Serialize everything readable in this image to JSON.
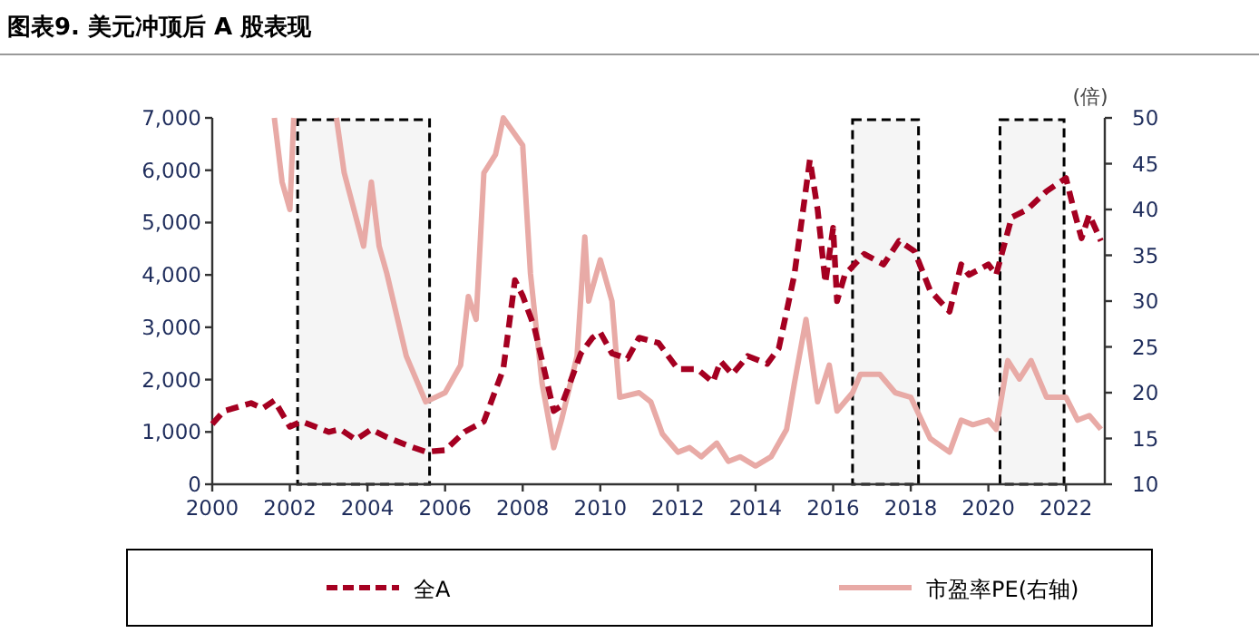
{
  "chart_data": {
    "type": "line",
    "title": "图表9. 美元冲顶后 A 股表现",
    "y2label": "(倍)",
    "xlim": [
      2000,
      2023
    ],
    "xticks": [
      2000,
      2002,
      2004,
      2006,
      2008,
      2010,
      2012,
      2014,
      2016,
      2018,
      2020,
      2022
    ],
    "ylim": [
      0,
      7000
    ],
    "yticks": [
      {
        "value": 0,
        "label": "0"
      },
      {
        "value": 1000,
        "label": "1,000"
      },
      {
        "value": 2000,
        "label": "2,000"
      },
      {
        "value": 3000,
        "label": "3,000"
      },
      {
        "value": 4000,
        "label": "4,000"
      },
      {
        "value": 5000,
        "label": "5,000"
      },
      {
        "value": 6000,
        "label": "6,000"
      },
      {
        "value": 7000,
        "label": "7,000"
      }
    ],
    "y2lim": [
      10,
      50
    ],
    "y2ticks": [
      10,
      15,
      20,
      25,
      30,
      35,
      40,
      45,
      50
    ],
    "legend": "bottom",
    "grid": false,
    "bands": [
      {
        "axis": "x",
        "from": 2002.2,
        "to": 2005.6,
        "color": "#000000"
      },
      {
        "axis": "x",
        "from": 2016.5,
        "to": 2018.2,
        "color": "#000000"
      },
      {
        "axis": "x",
        "from": 2020.3,
        "to": 2021.95,
        "color": "#000000"
      }
    ],
    "series": [
      {
        "name": "全A",
        "color": "#a50021",
        "line_style": "dashed",
        "x": [
          2000,
          2000.3,
          2001,
          2001.3,
          2001.6,
          2002,
          2002.3,
          2003,
          2003.3,
          2003.7,
          2004.1,
          2004.5,
          2005,
          2005.5,
          2006,
          2006.5,
          2007,
          2007.5,
          2007.8,
          2008,
          2008.3,
          2008.8,
          2009,
          2009.5,
          2009.8,
          2010,
          2010.3,
          2010.7,
          2011,
          2011.5,
          2012,
          2012.5,
          2012.9,
          2013.1,
          2013.4,
          2013.8,
          2014.3,
          2014.6,
          2015,
          2015.4,
          2015.6,
          2015.8,
          2016,
          2016.1,
          2016.3,
          2016.8,
          2017.3,
          2017.7,
          2018.1,
          2018.5,
          2019,
          2019.3,
          2019.5,
          2020,
          2020.2,
          2020.6,
          2021,
          2021.5,
          2022,
          2022.2,
          2022.4,
          2022.6,
          2022.9
        ],
        "values": [
          1150,
          1400,
          1550,
          1450,
          1600,
          1100,
          1200,
          1000,
          1050,
          850,
          1050,
          900,
          750,
          620,
          650,
          1000,
          1200,
          2200,
          3900,
          3600,
          3000,
          1400,
          1500,
          2500,
          2800,
          2900,
          2500,
          2400,
          2800,
          2700,
          2200,
          2200,
          1950,
          2350,
          2100,
          2450,
          2300,
          2600,
          4000,
          6200,
          5250,
          3850,
          4900,
          3500,
          4000,
          4400,
          4200,
          4650,
          4450,
          3700,
          3300,
          4200,
          4000,
          4200,
          4000,
          5100,
          5250,
          5600,
          5850,
          5250,
          4700,
          5150,
          4650
        ]
      },
      {
        "name": "市盈率PE(右轴)",
        "color": "#e8aaa6",
        "line_style": "solid",
        "axis": "y2",
        "x": [
          2001.6,
          2001.8,
          2002,
          2002.1,
          2002.6,
          2003.2,
          2003.4,
          2003.9,
          2004.1,
          2004.3,
          2004.5,
          2005,
          2005.5,
          2006,
          2006.4,
          2006.6,
          2006.8,
          2007,
          2007.3,
          2007.5,
          2008,
          2008.2,
          2008.5,
          2008.8,
          2009,
          2009.4,
          2009.6,
          2009.7,
          2010,
          2010.3,
          2010.5,
          2011,
          2011.3,
          2011.6,
          2012,
          2012.3,
          2012.6,
          2013,
          2013.3,
          2013.6,
          2014,
          2014.4,
          2014.8,
          2015,
          2015.3,
          2015.6,
          2015.9,
          2016.1,
          2016.5,
          2016.7,
          2017.2,
          2017.6,
          2018,
          2018.5,
          2019,
          2019.3,
          2019.6,
          2020,
          2020.2,
          2020.5,
          2020.8,
          2021.1,
          2021.5,
          2022,
          2022.3,
          2022.6,
          2022.9
        ],
        "values": [
          50,
          43,
          40,
          50,
          null,
          50,
          44,
          36,
          43,
          36,
          33,
          24,
          19,
          20,
          23,
          30.5,
          28,
          44,
          46,
          50,
          47,
          33,
          21,
          14,
          17,
          24,
          37,
          30,
          34.5,
          30,
          19.5,
          20,
          19,
          15.5,
          13.5,
          14,
          13,
          14.5,
          12.5,
          13,
          12,
          13,
          16,
          21,
          28,
          19,
          23,
          18,
          20,
          22,
          22,
          20,
          19.5,
          15,
          13.5,
          17,
          16.5,
          17,
          16,
          23.5,
          21.5,
          23.5,
          19.5,
          19.5,
          17,
          17.5,
          16
        ]
      }
    ]
  }
}
